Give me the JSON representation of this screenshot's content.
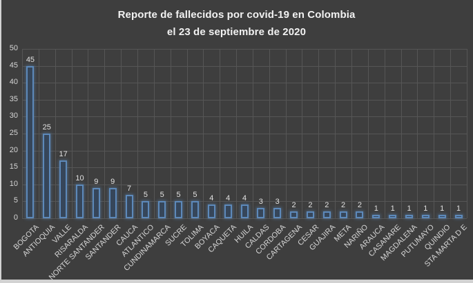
{
  "window": {
    "edge_color": "#d2d2d2"
  },
  "chart_data": {
    "type": "bar",
    "title": "Reporte de fallecidos por covid-19 en Colombia el 23 de septiembre de 2020",
    "title_line1": "Reporte de fallecidos por covid-19 en Colombia",
    "title_line2": "el 23 de septiembre de 2020",
    "categories": [
      "BOGOTA",
      "ANTIOQUIA",
      "VALLE",
      "RISARALDA",
      "NORTE SANTANDER",
      "SANTANDER",
      "CAUCA",
      "ATLANTICO",
      "CUNDINAMARCA",
      "SUCRE",
      "TOLIMA",
      "BOYACA",
      "CAQUETA",
      "HUILA",
      "CALDAS",
      "CORDOBA",
      "CARTAGENA",
      "CESAR",
      "GUAJIRA",
      "META",
      "NARIÑO",
      "ARAUCA",
      "CASANARE",
      "MAGDALENA",
      "PUTUMAYO",
      "QUINDIO",
      "STA MARTA D E"
    ],
    "values": [
      45,
      25,
      17,
      10,
      9,
      9,
      7,
      5,
      5,
      5,
      5,
      4,
      4,
      4,
      3,
      3,
      2,
      2,
      2,
      2,
      2,
      1,
      1,
      1,
      1,
      1,
      1
    ],
    "xlabel": "",
    "ylabel": "",
    "ylim": [
      0,
      50
    ],
    "ytick_step": 5,
    "grid": true,
    "legend": false,
    "data_labels": true,
    "x_label_rotation_deg": -45,
    "colors": {
      "background": "#3e3e3e",
      "gridline": "#565656",
      "bar_fill": "#36465a",
      "bar_border": "#5d89ba",
      "bar_glow": "rgba(93,137,186,0.5)",
      "title_text": "#f2f2f2",
      "axis_text": "#d6d6d6",
      "value_text": "#e2e2e2"
    }
  }
}
